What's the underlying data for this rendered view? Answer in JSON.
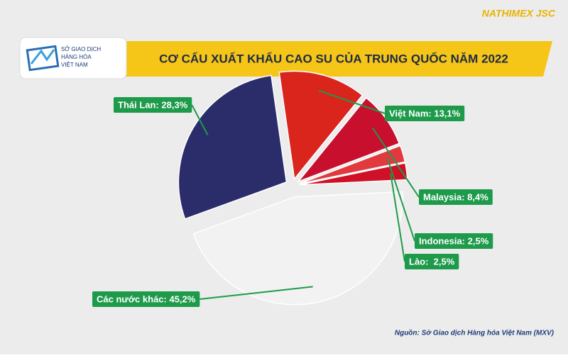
{
  "brand": "NATHIMEX JSC",
  "logo_text": [
    "SỞ GIAO DỊCH",
    "HÀNG HÓA",
    "VIỆT NAM"
  ],
  "source": "Nguồn: Sở Giao dịch Hàng hóa Việt Nam (MXV)",
  "chart_data": {
    "type": "pie",
    "title": "CƠ CẤU XUẤT KHẨU CAO SU CỦA TRUNG QUỐC NĂM 2022",
    "values": [
      28.3,
      13.1,
      8.4,
      2.5,
      2.5,
      45.2
    ],
    "value_labels": [
      "Thái Lan: 28,3%",
      "Việt Nam: 13,1%",
      "Malaysia: 8,4%",
      "Indonesia: 2,5%",
      "Lào:  2,5%",
      "Các nước khác: 45,2%"
    ],
    "colors": [
      "#2b2d6b",
      "#da251d",
      "#c8102e",
      "#e03a3e",
      "#ce1126",
      "#f2f2f2"
    ]
  }
}
